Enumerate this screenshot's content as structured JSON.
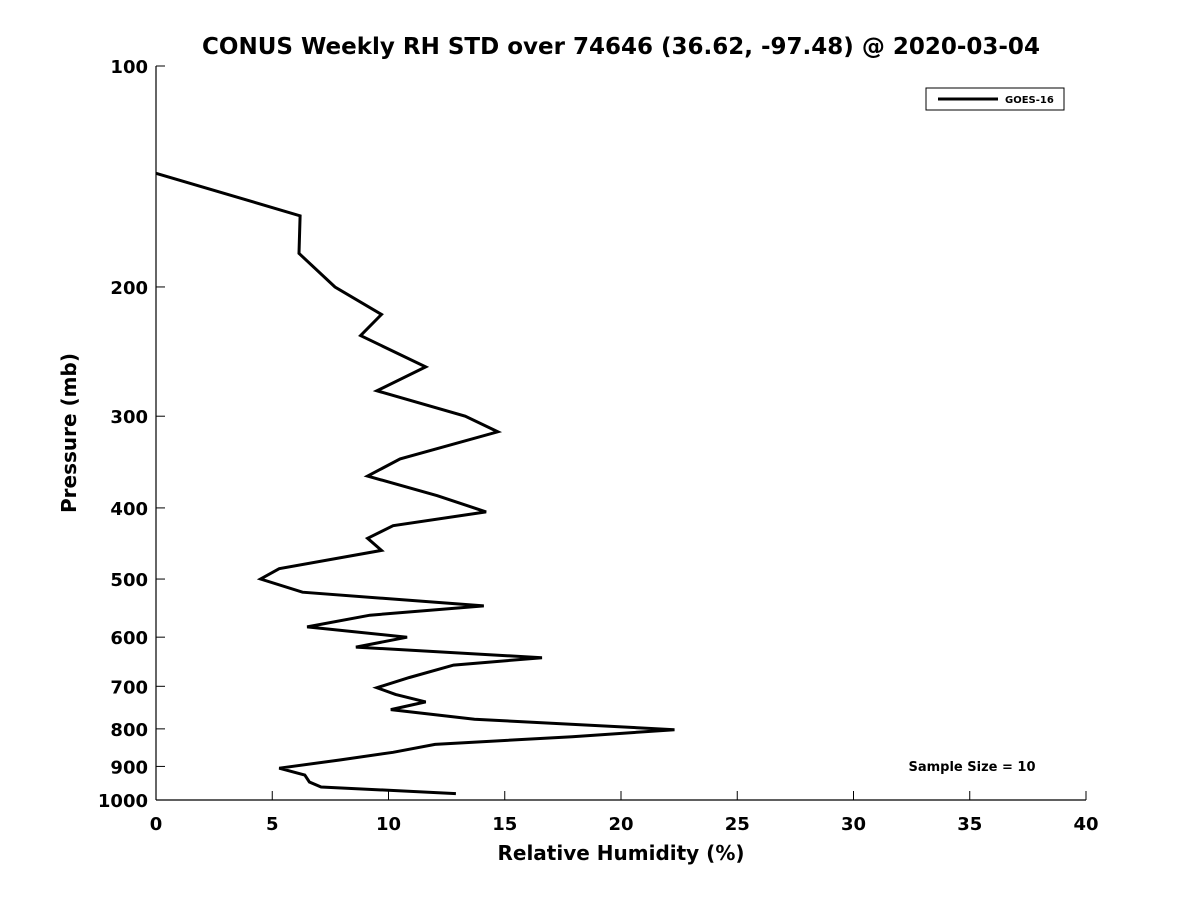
{
  "chart_data": {
    "type": "line",
    "title": "CONUS Weekly RH STD over 74646 (36.62, -97.48) @ 2020-03-04",
    "xlabel": "Relative Humidity (%)",
    "ylabel": "Pressure (mb)",
    "xlim": [
      0,
      40
    ],
    "ylim": [
      100,
      1000
    ],
    "yscale": "log",
    "y_reversed": true,
    "grid": false,
    "legend_position": "top-right",
    "x_ticks": [
      {
        "value": 0,
        "label": "0"
      },
      {
        "value": 5,
        "label": "5"
      },
      {
        "value": 10,
        "label": "10"
      },
      {
        "value": 15,
        "label": "15"
      },
      {
        "value": 20,
        "label": "20"
      },
      {
        "value": 25,
        "label": "25"
      },
      {
        "value": 30,
        "label": "30"
      },
      {
        "value": 35,
        "label": "35"
      },
      {
        "value": 40,
        "label": "40"
      }
    ],
    "y_ticks": [
      {
        "value": 100,
        "label": "100"
      },
      {
        "value": 200,
        "label": "200"
      },
      {
        "value": 300,
        "label": "300"
      },
      {
        "value": 400,
        "label": "400"
      },
      {
        "value": 500,
        "label": "500"
      },
      {
        "value": 600,
        "label": "600"
      },
      {
        "value": 700,
        "label": "700"
      },
      {
        "value": 800,
        "label": "800"
      },
      {
        "value": 900,
        "label": "900"
      },
      {
        "value": 1000,
        "label": "1000"
      }
    ],
    "series": [
      {
        "name": "GOES-16",
        "color": "#000000",
        "points": [
          [
            0.0,
            140
          ],
          [
            6.2,
            160
          ],
          [
            6.15,
            180
          ],
          [
            7.7,
            200
          ],
          [
            9.7,
            218
          ],
          [
            8.8,
            233
          ],
          [
            11.6,
            257
          ],
          [
            9.5,
            277
          ],
          [
            13.3,
            300
          ],
          [
            14.7,
            315
          ],
          [
            10.5,
            343
          ],
          [
            9.1,
            362
          ],
          [
            12.1,
            385
          ],
          [
            14.2,
            405
          ],
          [
            10.2,
            423
          ],
          [
            9.1,
            440
          ],
          [
            9.7,
            457
          ],
          [
            5.3,
            484
          ],
          [
            4.5,
            500
          ],
          [
            6.3,
            521
          ],
          [
            14.1,
            544
          ],
          [
            9.2,
            560
          ],
          [
            6.5,
            581
          ],
          [
            10.8,
            600
          ],
          [
            8.6,
            619
          ],
          [
            16.6,
            640
          ],
          [
            12.8,
            655
          ],
          [
            10.9,
            681
          ],
          [
            9.5,
            703
          ],
          [
            10.3,
            718
          ],
          [
            11.6,
            735
          ],
          [
            10.1,
            753
          ],
          [
            13.7,
            776
          ],
          [
            22.3,
            802
          ],
          [
            17.9,
            820
          ],
          [
            12.0,
            840
          ],
          [
            10.2,
            861
          ],
          [
            7.9,
            882
          ],
          [
            5.3,
            905
          ],
          [
            6.4,
            925
          ],
          [
            6.6,
            945
          ],
          [
            7.1,
            960
          ],
          [
            12.9,
            980
          ]
        ]
      }
    ],
    "annotations": [
      {
        "text": "Sample Size = 10"
      }
    ]
  }
}
